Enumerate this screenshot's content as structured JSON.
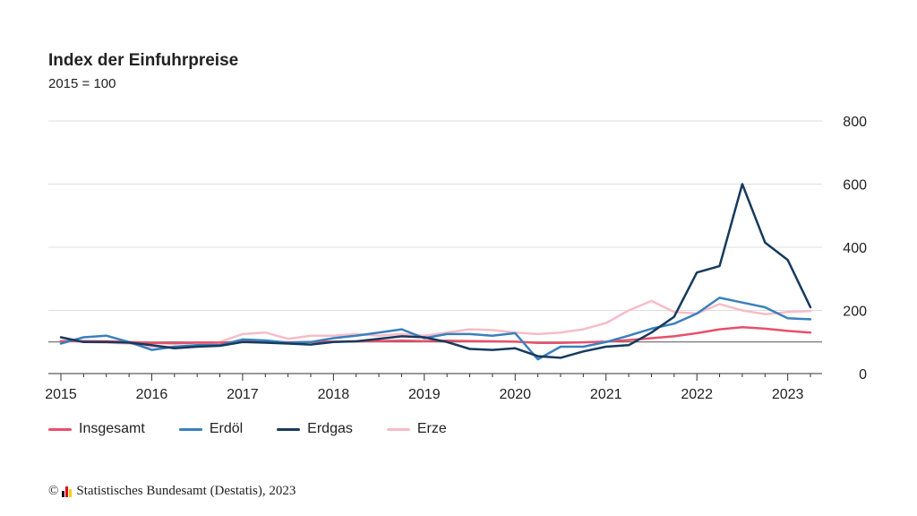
{
  "chart_data": {
    "type": "line",
    "title": "Index der Einfuhrpreise",
    "subtitle": "2015 = 100",
    "xlabel": "",
    "ylabel": "",
    "ylim": [
      0,
      800
    ],
    "yticks": [
      "0",
      "200",
      "400",
      "600",
      "800"
    ],
    "xticks": [
      "2015",
      "2016",
      "2017",
      "2018",
      "2019",
      "2020",
      "2021",
      "2022",
      "2023"
    ],
    "xlim": [
      "2015-01",
      "2023-04"
    ],
    "reference_line": 100,
    "grid": true,
    "legend": "bottom",
    "x": [
      "2015-01",
      "2015-04",
      "2015-07",
      "2015-10",
      "2016-01",
      "2016-04",
      "2016-07",
      "2016-10",
      "2017-01",
      "2017-04",
      "2017-07",
      "2017-10",
      "2018-01",
      "2018-04",
      "2018-07",
      "2018-10",
      "2019-01",
      "2019-04",
      "2019-07",
      "2019-10",
      "2020-01",
      "2020-04",
      "2020-07",
      "2020-10",
      "2021-01",
      "2021-04",
      "2021-07",
      "2021-10",
      "2022-01",
      "2022-04",
      "2022-07",
      "2022-10",
      "2023-01",
      "2023-04"
    ],
    "series": [
      {
        "name": "Insgesamt",
        "color": "#e8506a",
        "values": [
          103,
          103,
          102,
          100,
          97,
          96,
          98,
          98,
          101,
          101,
          99,
          100,
          101,
          102,
          103,
          104,
          103,
          104,
          103,
          102,
          101,
          97,
          97,
          99,
          101,
          106,
          112,
          118,
          128,
          140,
          147,
          142,
          135,
          130
        ]
      },
      {
        "name": "Erdöl",
        "color": "#3a80bd",
        "values": [
          95,
          115,
          120,
          100,
          75,
          85,
          90,
          90,
          108,
          105,
          98,
          100,
          112,
          120,
          130,
          140,
          112,
          125,
          125,
          120,
          128,
          45,
          85,
          85,
          100,
          120,
          142,
          158,
          190,
          240,
          225,
          210,
          175,
          172
        ]
      },
      {
        "name": "Erdgas",
        "color": "#163a5c",
        "values": [
          115,
          100,
          100,
          98,
          90,
          80,
          85,
          88,
          100,
          98,
          95,
          92,
          100,
          102,
          110,
          118,
          115,
          100,
          78,
          75,
          80,
          55,
          50,
          70,
          85,
          90,
          130,
          180,
          320,
          340,
          600,
          415,
          360,
          210
        ]
      },
      {
        "name": "Erze",
        "color": "#f7bcc8",
        "values": [
          103,
          100,
          98,
          95,
          85,
          85,
          90,
          100,
          125,
          130,
          110,
          120,
          120,
          125,
          120,
          125,
          120,
          130,
          140,
          138,
          130,
          125,
          130,
          140,
          160,
          200,
          230,
          195,
          190,
          220,
          200,
          188,
          195,
          198
        ]
      }
    ]
  },
  "legend_items": [
    "Insgesamt",
    "Erdöl",
    "Erdgas",
    "Erze"
  ],
  "source": {
    "copyright": "©",
    "text": "Statistisches Bundesamt (Destatis), 2023"
  },
  "logo_colors": [
    "#1a1a1a",
    "#e30613",
    "#ffcc00"
  ]
}
